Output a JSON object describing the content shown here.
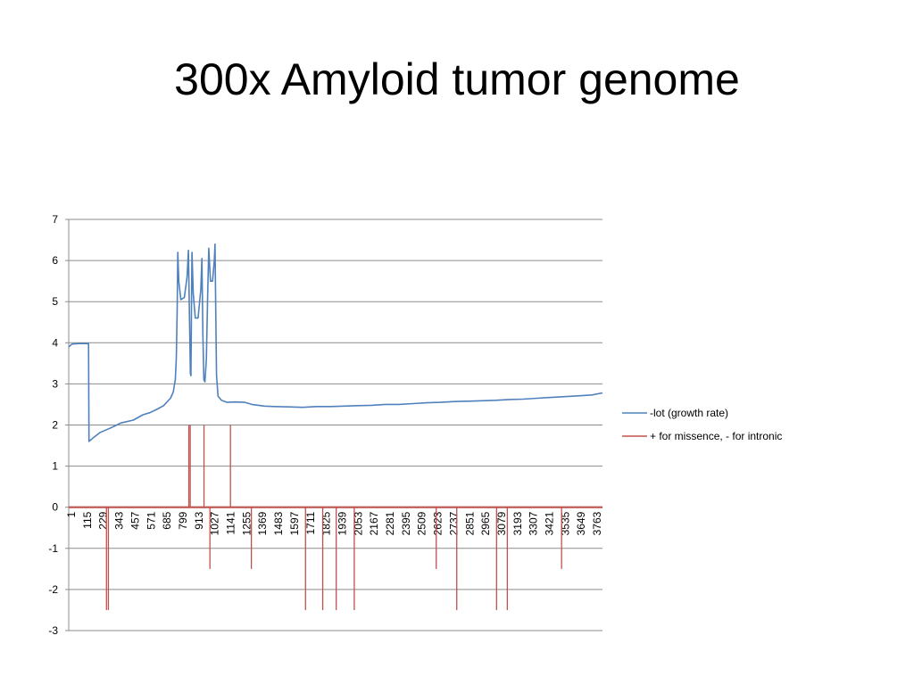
{
  "slide": {
    "title": "300x Amyloid tumor genome"
  },
  "chart_data": {
    "type": "line",
    "title": "",
    "xlabel": "",
    "ylabel": "",
    "ylim": [
      -3,
      7
    ],
    "yticks": [
      -3,
      -2,
      -1,
      0,
      1,
      2,
      3,
      4,
      5,
      6,
      7
    ],
    "xlim": [
      1,
      3876
    ],
    "xtick_labels": [
      "1",
      "115",
      "229",
      "343",
      "457",
      "571",
      "685",
      "799",
      "913",
      "1027",
      "1141",
      "1255",
      "1369",
      "1483",
      "1597",
      "1711",
      "1825",
      "1939",
      "2053",
      "2167",
      "2281",
      "2395",
      "2509",
      "2623",
      "2737",
      "2851",
      "2965",
      "3079",
      "3193",
      "3307",
      "3421",
      "3535",
      "3649",
      "3763"
    ],
    "grid": true,
    "legend": "right",
    "series": [
      {
        "name": "-lot (growth rate)",
        "color": "#4f81bd",
        "points": [
          [
            1,
            3.9
          ],
          [
            25,
            3.97
          ],
          [
            80,
            3.98
          ],
          [
            145,
            3.98
          ],
          [
            148,
            1.6
          ],
          [
            175,
            1.68
          ],
          [
            230,
            1.82
          ],
          [
            300,
            1.92
          ],
          [
            380,
            2.05
          ],
          [
            470,
            2.12
          ],
          [
            540,
            2.25
          ],
          [
            590,
            2.3
          ],
          [
            640,
            2.38
          ],
          [
            690,
            2.47
          ],
          [
            740,
            2.65
          ],
          [
            760,
            2.8
          ],
          [
            775,
            3.1
          ],
          [
            782,
            3.6
          ],
          [
            788,
            4.8
          ],
          [
            793,
            6.2
          ],
          [
            800,
            5.5
          ],
          [
            815,
            5.05
          ],
          [
            840,
            5.1
          ],
          [
            860,
            5.6
          ],
          [
            870,
            6.25
          ],
          [
            878,
            4.6
          ],
          [
            884,
            3.25
          ],
          [
            888,
            3.2
          ],
          [
            892,
            4.8
          ],
          [
            896,
            6.2
          ],
          [
            905,
            5.2
          ],
          [
            920,
            4.6
          ],
          [
            940,
            4.6
          ],
          [
            960,
            5.3
          ],
          [
            968,
            6.05
          ],
          [
            975,
            4.2
          ],
          [
            982,
            3.1
          ],
          [
            990,
            3.05
          ],
          [
            1000,
            3.6
          ],
          [
            1010,
            5.2
          ],
          [
            1018,
            6.3
          ],
          [
            1030,
            5.5
          ],
          [
            1045,
            5.5
          ],
          [
            1058,
            6.0
          ],
          [
            1063,
            6.4
          ],
          [
            1068,
            4.8
          ],
          [
            1074,
            3.2
          ],
          [
            1085,
            2.7
          ],
          [
            1110,
            2.6
          ],
          [
            1150,
            2.55
          ],
          [
            1210,
            2.56
          ],
          [
            1280,
            2.55
          ],
          [
            1330,
            2.5
          ],
          [
            1420,
            2.46
          ],
          [
            1500,
            2.45
          ],
          [
            1600,
            2.44
          ],
          [
            1700,
            2.43
          ],
          [
            1800,
            2.45
          ],
          [
            1900,
            2.45
          ],
          [
            2000,
            2.46
          ],
          [
            2100,
            2.47
          ],
          [
            2200,
            2.48
          ],
          [
            2300,
            2.5
          ],
          [
            2400,
            2.5
          ],
          [
            2500,
            2.52
          ],
          [
            2600,
            2.54
          ],
          [
            2700,
            2.55
          ],
          [
            2800,
            2.57
          ],
          [
            2900,
            2.58
          ],
          [
            3000,
            2.59
          ],
          [
            3100,
            2.6
          ],
          [
            3200,
            2.62
          ],
          [
            3300,
            2.63
          ],
          [
            3400,
            2.65
          ],
          [
            3500,
            2.67
          ],
          [
            3600,
            2.69
          ],
          [
            3700,
            2.71
          ],
          [
            3800,
            2.73
          ],
          [
            3876,
            2.78
          ]
        ]
      },
      {
        "name": "+ for missence, - for intronic",
        "color": "#c0504d",
        "baseline": 0,
        "spikes": [
          [
            275,
            -2.5
          ],
          [
            289,
            -2.5
          ],
          [
            873,
            2
          ],
          [
            883,
            2
          ],
          [
            983,
            2
          ],
          [
            1026,
            -1.5
          ],
          [
            1175,
            2
          ],
          [
            1327,
            -1.5
          ],
          [
            1720,
            -2.5
          ],
          [
            1845,
            -2.5
          ],
          [
            1943,
            -2.5
          ],
          [
            2074,
            -2.5
          ],
          [
            2669,
            -1.5
          ],
          [
            2818,
            -2.5
          ],
          [
            3107,
            -2.5
          ],
          [
            3185,
            -2.5
          ],
          [
            3579,
            -1.5
          ]
        ]
      }
    ]
  }
}
